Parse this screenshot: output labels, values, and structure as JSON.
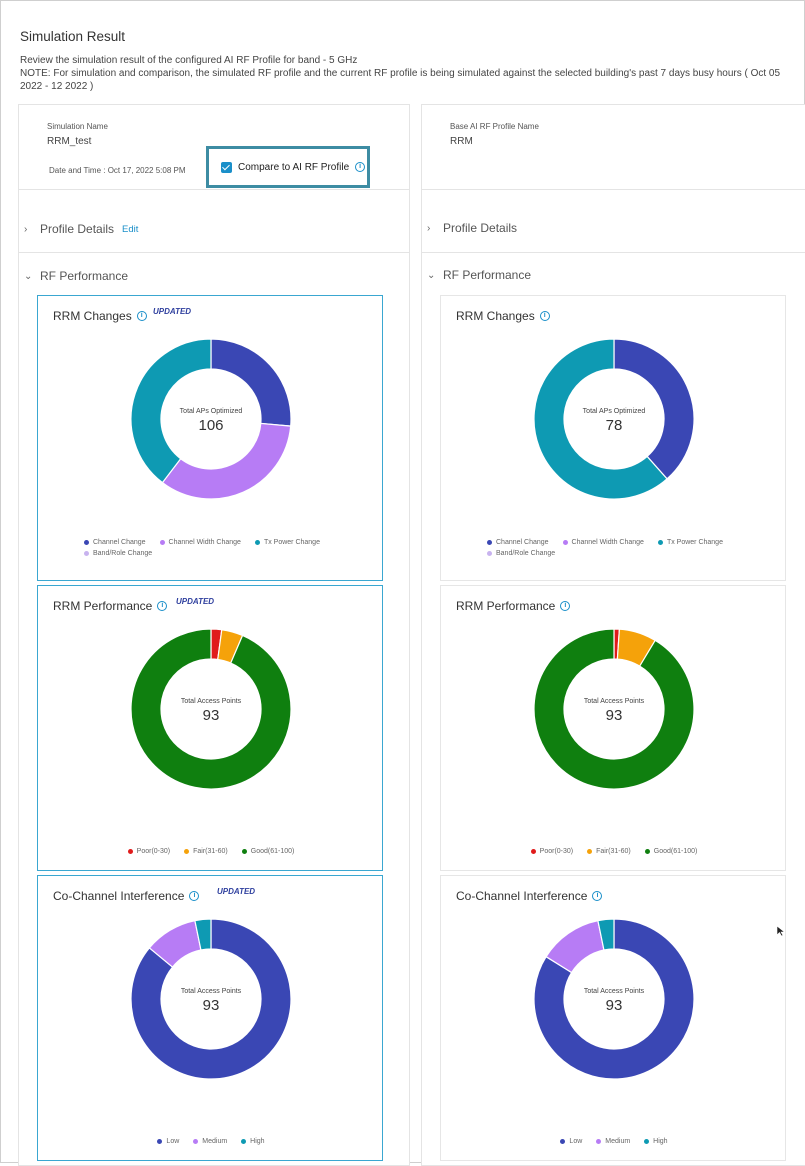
{
  "page": {
    "title": "Simulation Result",
    "description_line1": "Review the simulation result of the configured AI RF Profile for band - 5 GHz",
    "description_line2": "NOTE: For simulation and comparison, the simulated RF profile and the current RF profile is being simulated against the selected building's past 7 days busy hours ( Oct 05 2022 - 12 2022 )"
  },
  "left": {
    "sim_name_label": "Simulation Name",
    "sim_name_value": "RRM_test",
    "datetime": "Date and Time : Oct 17, 2022 5:08 PM",
    "compare_label": "Compare to AI RF Profile",
    "profile_details": "Profile Details",
    "edit": "Edit",
    "rf_performance": "RF Performance"
  },
  "right": {
    "base_label": "Base AI RF Profile Name",
    "base_value": "RRM",
    "profile_details": "Profile Details",
    "rf_performance": "RF Performance"
  },
  "colors": {
    "channel_change": "#3a47b4",
    "channel_width_change": "#b77cf5",
    "tx_power_change": "#0e9ab3",
    "band_role_change": "#c8b3ef",
    "poor": "#e01b1b",
    "fair": "#f5a20a",
    "good": "#0f7f0f",
    "low": "#3a47b4",
    "medium": "#b77cf5",
    "high": "#0e9ab3"
  },
  "cards": {
    "left_rrm_changes": {
      "title": "RRM Changes",
      "badge": "UPDATED",
      "center_label": "Total APs Optimized",
      "center_value": "106",
      "legend": [
        "Channel Change",
        "Channel Width Change",
        "Tx Power Change",
        "Band/Role Change"
      ]
    },
    "right_rrm_changes": {
      "title": "RRM Changes",
      "center_label": "Total APs Optimized",
      "center_value": "78",
      "legend": [
        "Channel Change",
        "Channel Width Change",
        "Tx Power Change",
        "Band/Role Change"
      ]
    },
    "left_rrm_performance": {
      "title": "RRM Performance",
      "badge": "UPDATED",
      "center_label": "Total Access Points",
      "center_value": "93",
      "legend": [
        "Poor(0-30)",
        "Fair(31-60)",
        "Good(61-100)"
      ]
    },
    "right_rrm_performance": {
      "title": "RRM Performance",
      "center_label": "Total Access Points",
      "center_value": "93",
      "legend": [
        "Poor(0-30)",
        "Fair(31-60)",
        "Good(61-100)"
      ]
    },
    "left_cci": {
      "title": "Co-Channel Interference",
      "badge": "UPDATED",
      "center_label": "Total Access Points",
      "center_value": "93",
      "legend": [
        "Low",
        "Medium",
        "High"
      ]
    },
    "right_cci": {
      "title": "Co-Channel Interference",
      "center_label": "Total Access Points",
      "center_value": "93",
      "legend": [
        "Low",
        "Medium",
        "High"
      ]
    }
  },
  "donuts": {
    "left_rrm_changes": [
      {
        "label": "Channel Change",
        "value": 28,
        "color": "#3a47b4"
      },
      {
        "label": "Channel Width Change",
        "value": 36,
        "color": "#b77cf5"
      },
      {
        "label": "Tx Power Change",
        "value": 42,
        "color": "#0e9ab3"
      }
    ],
    "right_rrm_changes": [
      {
        "label": "Channel Change",
        "value": 30,
        "color": "#3a47b4"
      },
      {
        "label": "Tx Power Change",
        "value": 48,
        "color": "#0e9ab3"
      }
    ],
    "left_rrm_performance": [
      {
        "label": "Poor(0-30)",
        "value": 2,
        "color": "#e01b1b"
      },
      {
        "label": "Fair(31-60)",
        "value": 4,
        "color": "#f5a20a"
      },
      {
        "label": "Good(61-100)",
        "value": 87,
        "color": "#0f7f0f"
      }
    ],
    "right_rrm_performance": [
      {
        "label": "Poor(0-30)",
        "value": 1,
        "color": "#e01b1b"
      },
      {
        "label": "Fair(31-60)",
        "value": 7,
        "color": "#f5a20a"
      },
      {
        "label": "Good(61-100)",
        "value": 85,
        "color": "#0f7f0f"
      }
    ],
    "left_cci": [
      {
        "label": "Low",
        "value": 80,
        "color": "#3a47b4"
      },
      {
        "label": "Medium",
        "value": 10,
        "color": "#b77cf5"
      },
      {
        "label": "High",
        "value": 3,
        "color": "#0e9ab3"
      }
    ],
    "right_cci": [
      {
        "label": "Low",
        "value": 78,
        "color": "#3a47b4"
      },
      {
        "label": "Medium",
        "value": 12,
        "color": "#b77cf5"
      },
      {
        "label": "High",
        "value": 3,
        "color": "#0e9ab3"
      }
    ]
  }
}
